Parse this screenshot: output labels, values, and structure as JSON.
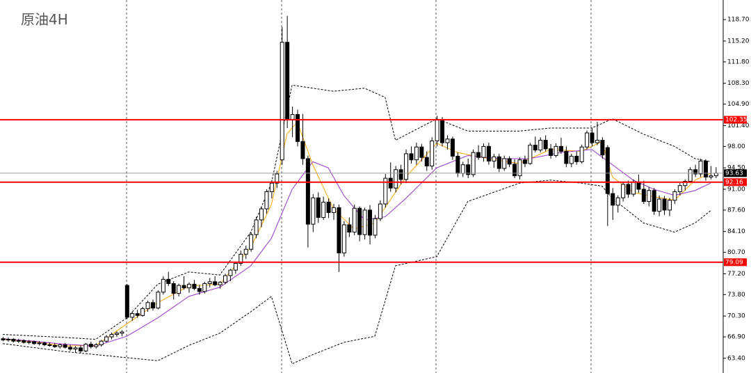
{
  "chart_data": {
    "type": "candlestick",
    "title": "原油4H",
    "ylim": [
      61.0,
      121.9
    ],
    "yticks": [
      {
        "value": 118.7,
        "label": "118.70"
      },
      {
        "value": 115.2,
        "label": "115.20"
      },
      {
        "value": 111.8,
        "label": "111.80"
      },
      {
        "value": 108.3,
        "label": "108.30"
      },
      {
        "value": 104.9,
        "label": "104.90"
      },
      {
        "value": 101.4,
        "label": "101.40"
      },
      {
        "value": 98.0,
        "label": "98.00"
      },
      {
        "value": 94.5,
        "label": "94.50"
      },
      {
        "value": 91.0,
        "label": "91.00"
      },
      {
        "value": 87.6,
        "label": "87.60"
      },
      {
        "value": 84.1,
        "label": "84.10"
      },
      {
        "value": 80.7,
        "label": "80.70"
      },
      {
        "value": 77.2,
        "label": "77.20"
      },
      {
        "value": 73.8,
        "label": "73.80"
      },
      {
        "value": 70.3,
        "label": "70.30"
      },
      {
        "value": 66.9,
        "label": "66.90"
      },
      {
        "value": 63.4,
        "label": "63.40"
      }
    ],
    "up_color": "#ffffff",
    "down_color": "#000000",
    "candles": [
      [
        66.6,
        66.9,
        66.2,
        66.4
      ],
      [
        66.4,
        66.8,
        66.1,
        66.5
      ],
      [
        66.5,
        66.7,
        66.0,
        66.2
      ],
      [
        66.2,
        66.6,
        65.9,
        66.3
      ],
      [
        66.3,
        66.5,
        65.8,
        66.0
      ],
      [
        66.0,
        66.4,
        65.7,
        66.1
      ],
      [
        66.1,
        66.3,
        65.6,
        65.8
      ],
      [
        65.8,
        66.2,
        65.5,
        65.9
      ],
      [
        65.9,
        66.1,
        65.4,
        65.6
      ],
      [
        65.6,
        66.0,
        65.3,
        65.5
      ],
      [
        65.5,
        65.9,
        65.1,
        65.3
      ],
      [
        65.3,
        65.8,
        65.0,
        65.6
      ],
      [
        65.6,
        65.9,
        65.0,
        65.2
      ],
      [
        65.2,
        65.6,
        64.6,
        64.9
      ],
      [
        64.9,
        65.4,
        64.3,
        65.1
      ],
      [
        65.1,
        65.5,
        64.2,
        64.6
      ],
      [
        64.6,
        65.9,
        64.4,
        65.7
      ],
      [
        65.7,
        66.1,
        65.0,
        65.3
      ],
      [
        65.3,
        65.9,
        65.0,
        65.6
      ],
      [
        65.6,
        66.4,
        65.3,
        66.2
      ],
      [
        66.2,
        67.2,
        66.0,
        66.9
      ],
      [
        66.9,
        67.6,
        66.5,
        67.3
      ],
      [
        67.3,
        67.8,
        66.9,
        67.5
      ],
      [
        67.5,
        68.0,
        67.0,
        67.7
      ],
      [
        75.3,
        75.5,
        69.8,
        70.1
      ],
      [
        70.1,
        71.0,
        69.5,
        70.7
      ],
      [
        70.7,
        71.3,
        70.0,
        70.4
      ],
      [
        70.4,
        71.8,
        70.2,
        71.5
      ],
      [
        71.5,
        72.8,
        71.0,
        72.5
      ],
      [
        72.5,
        73.0,
        71.2,
        71.6
      ],
      [
        71.6,
        74.5,
        71.4,
        74.2
      ],
      [
        74.2,
        76.8,
        73.8,
        76.3
      ],
      [
        76.3,
        77.5,
        75.2,
        75.6
      ],
      [
        75.6,
        76.0,
        73.0,
        74.0
      ],
      [
        74.0,
        75.6,
        73.5,
        75.3
      ],
      [
        75.3,
        76.8,
        74.6,
        74.9
      ],
      [
        74.9,
        75.8,
        74.1,
        75.5
      ],
      [
        75.5,
        76.2,
        74.5,
        74.8
      ],
      [
        74.8,
        75.4,
        73.8,
        74.3
      ],
      [
        74.3,
        75.9,
        74.0,
        75.6
      ],
      [
        75.6,
        76.5,
        75.0,
        75.9
      ],
      [
        75.9,
        76.8,
        75.2,
        75.4
      ],
      [
        75.4,
        76.0,
        74.8,
        75.8
      ],
      [
        75.8,
        77.2,
        75.5,
        76.9
      ],
      [
        76.9,
        78.0,
        76.0,
        77.8
      ],
      [
        77.8,
        79.2,
        77.2,
        78.9
      ],
      [
        78.9,
        81.0,
        78.5,
        80.4
      ],
      [
        80.4,
        81.8,
        79.6,
        81.2
      ],
      [
        81.2,
        84.0,
        80.8,
        83.6
      ],
      [
        83.6,
        86.5,
        83.0,
        86.0
      ],
      [
        86.0,
        88.2,
        84.8,
        87.8
      ],
      [
        87.8,
        91.0,
        87.0,
        90.6
      ],
      [
        90.6,
        92.5,
        89.5,
        92.0
      ],
      [
        92.0,
        94.0,
        91.2,
        93.5
      ],
      [
        95.8,
        117.5,
        95.0,
        115.0
      ],
      [
        115.0,
        119.3,
        101.0,
        102.3
      ],
      [
        102.3,
        104.5,
        99.5,
        103.2
      ],
      [
        103.2,
        104.0,
        98.0,
        98.8
      ],
      [
        98.8,
        103.3,
        95.0,
        96.0
      ],
      [
        96.0,
        96.5,
        81.5,
        85.3
      ],
      [
        85.3,
        90.2,
        84.0,
        89.6
      ],
      [
        89.6,
        90.5,
        85.5,
        86.4
      ],
      [
        86.4,
        89.8,
        86.0,
        88.9
      ],
      [
        88.9,
        89.5,
        86.3,
        87.2
      ],
      [
        87.2,
        88.6,
        86.0,
        88.0
      ],
      [
        88.0,
        88.5,
        77.5,
        80.6
      ],
      [
        80.6,
        85.8,
        80.0,
        85.2
      ],
      [
        85.2,
        86.4,
        83.2,
        84.0
      ],
      [
        84.0,
        88.5,
        83.5,
        87.9
      ],
      [
        87.9,
        88.2,
        82.5,
        83.6
      ],
      [
        83.6,
        88.0,
        82.8,
        87.6
      ],
      [
        87.6,
        88.4,
        82.0,
        83.5
      ],
      [
        83.5,
        86.8,
        83.0,
        86.2
      ],
      [
        86.2,
        89.2,
        85.8,
        88.6
      ],
      [
        88.6,
        93.5,
        88.0,
        92.8
      ],
      [
        92.8,
        95.4,
        90.6,
        91.2
      ],
      [
        91.2,
        94.8,
        90.5,
        94.2
      ],
      [
        94.2,
        95.0,
        91.8,
        92.6
      ],
      [
        92.6,
        97.5,
        92.0,
        96.8
      ],
      [
        96.8,
        98.0,
        95.2,
        95.8
      ],
      [
        95.8,
        98.6,
        95.0,
        97.9
      ],
      [
        97.9,
        98.4,
        95.5,
        96.2
      ],
      [
        96.2,
        97.2,
        94.0,
        94.8
      ],
      [
        94.8,
        99.5,
        94.2,
        98.9
      ],
      [
        98.9,
        103.0,
        98.0,
        102.4
      ],
      [
        102.4,
        102.8,
        98.0,
        98.6
      ],
      [
        98.6,
        99.8,
        97.5,
        99.2
      ],
      [
        99.2,
        99.6,
        95.8,
        96.4
      ],
      [
        96.4,
        97.0,
        93.0,
        93.6
      ],
      [
        93.6,
        95.5,
        93.0,
        95.0
      ],
      [
        95.0,
        96.0,
        92.8,
        93.4
      ],
      [
        93.4,
        97.5,
        93.0,
        97.0
      ],
      [
        97.0,
        98.2,
        95.8,
        96.2
      ],
      [
        96.2,
        98.5,
        95.5,
        98.0
      ],
      [
        98.0,
        98.6,
        95.0,
        95.6
      ],
      [
        95.6,
        96.8,
        94.5,
        96.3
      ],
      [
        96.3,
        96.8,
        93.8,
        94.4
      ],
      [
        94.4,
        96.5,
        94.0,
        96.0
      ],
      [
        96.0,
        96.4,
        94.6,
        95.1
      ],
      [
        95.1,
        95.9,
        92.8,
        93.2
      ],
      [
        93.2,
        96.2,
        92.6,
        95.8
      ],
      [
        95.8,
        96.5,
        94.6,
        95.2
      ],
      [
        95.2,
        98.6,
        95.0,
        98.2
      ],
      [
        98.2,
        99.6,
        97.0,
        97.4
      ],
      [
        97.4,
        99.5,
        97.0,
        99.0
      ],
      [
        99.0,
        99.8,
        97.2,
        97.6
      ],
      [
        97.6,
        98.4,
        96.0,
        96.5
      ],
      [
        96.5,
        98.5,
        96.2,
        98.0
      ],
      [
        98.0,
        99.4,
        96.8,
        97.2
      ],
      [
        97.2,
        98.0,
        94.6,
        95.2
      ],
      [
        95.2,
        96.8,
        94.6,
        96.4
      ],
      [
        96.4,
        97.2,
        95.0,
        95.5
      ],
      [
        95.5,
        98.3,
        95.2,
        97.9
      ],
      [
        97.9,
        100.6,
        97.5,
        100.2
      ],
      [
        100.2,
        101.0,
        98.0,
        98.6
      ],
      [
        98.6,
        102.0,
        98.2,
        99.0
      ],
      [
        99.0,
        99.5,
        96.0,
        96.6
      ],
      [
        97.8,
        98.2,
        85.0,
        90.3
      ],
      [
        90.3,
        91.2,
        86.0,
        88.4
      ],
      [
        88.4,
        90.0,
        87.2,
        89.6
      ],
      [
        89.6,
        92.2,
        89.0,
        91.8
      ],
      [
        91.8,
        92.4,
        89.6,
        90.2
      ],
      [
        90.2,
        92.6,
        89.8,
        92.2
      ],
      [
        92.2,
        93.4,
        90.4,
        91.0
      ],
      [
        91.0,
        92.4,
        88.6,
        89.0
      ],
      [
        89.0,
        91.4,
        88.2,
        90.8
      ],
      [
        90.8,
        91.2,
        86.8,
        87.4
      ],
      [
        87.4,
        90.0,
        86.6,
        89.4
      ],
      [
        89.4,
        89.9,
        86.8,
        87.6
      ],
      [
        87.6,
        89.6,
        86.6,
        89.2
      ],
      [
        89.2,
        91.0,
        88.6,
        90.6
      ],
      [
        90.6,
        92.0,
        90.0,
        91.6
      ],
      [
        91.6,
        92.6,
        90.8,
        92.3
      ],
      [
        92.3,
        94.6,
        92.0,
        94.2
      ],
      [
        94.2,
        95.0,
        93.0,
        93.5
      ],
      [
        93.5,
        96.0,
        93.0,
        95.6
      ],
      [
        95.6,
        95.9,
        92.4,
        93.0
      ],
      [
        93.0,
        94.8,
        92.6,
        93.2
      ],
      [
        93.2,
        94.6,
        92.8,
        93.63
      ]
    ],
    "overlays": [
      {
        "color": "#ffa500",
        "dashed": false,
        "x": [
          0,
          6,
          12,
          18,
          24,
          30,
          36,
          42,
          48,
          52,
          55,
          57,
          60,
          64,
          68,
          72,
          78,
          84,
          88,
          94,
          100,
          106,
          112,
          116,
          118,
          122,
          126,
          130,
          134,
          137
        ],
        "values": [
          66.5,
          66.1,
          65.4,
          65.5,
          69.0,
          72.5,
          75.2,
          75.5,
          81.5,
          88.5,
          100.0,
          102.0,
          95.0,
          87.8,
          84.5,
          85.5,
          93.0,
          98.5,
          97.0,
          96.0,
          95.2,
          97.5,
          97.2,
          98.8,
          93.0,
          90.5,
          89.8,
          89.2,
          92.5,
          93.6
        ]
      },
      {
        "color": "#9932cc",
        "dashed": false,
        "x": [
          0,
          6,
          12,
          18,
          24,
          30,
          36,
          42,
          48,
          52,
          56,
          60,
          63,
          66,
          70,
          74,
          78,
          84,
          90,
          96,
          102,
          108,
          114,
          118,
          122,
          126,
          130,
          134,
          137
        ],
        "values": [
          66.6,
          66.2,
          65.7,
          65.4,
          67.0,
          70.0,
          73.5,
          75.0,
          78.5,
          83.0,
          91.0,
          95.5,
          94.5,
          90.0,
          86.0,
          86.5,
          89.5,
          94.5,
          96.5,
          96.0,
          96.0,
          97.0,
          97.5,
          95.0,
          92.5,
          91.0,
          90.0,
          90.8,
          92.0
        ]
      },
      {
        "color": "#000000",
        "dashed": true,
        "x": [
          0,
          12,
          18,
          24,
          30,
          36,
          42,
          48,
          52,
          56,
          60,
          64,
          70,
          74,
          76,
          84,
          90,
          100,
          106,
          114,
          118,
          124,
          130,
          134,
          137
        ],
        "values": [
          67.3,
          66.8,
          66.5,
          70.0,
          75.5,
          77.5,
          77.0,
          84.0,
          92.0,
          108.0,
          107.5,
          107.0,
          107.5,
          106.0,
          99.0,
          102.5,
          100.5,
          100.5,
          101.0,
          101.0,
          102.5,
          100.0,
          98.0,
          96.0,
          95.5
        ]
      },
      {
        "color": "#000000",
        "dashed": true,
        "x": [
          0,
          12,
          18,
          24,
          30,
          36,
          42,
          48,
          52,
          56,
          60,
          66,
          72,
          76,
          84,
          90,
          100,
          106,
          112,
          116,
          118,
          124,
          130,
          134,
          137
        ],
        "values": [
          65.8,
          64.5,
          64.0,
          63.5,
          63.0,
          65.5,
          67.5,
          71.0,
          73.5,
          62.5,
          64.0,
          66.0,
          67.0,
          78.5,
          80.0,
          89.0,
          92.0,
          92.5,
          92.0,
          91.5,
          89.5,
          85.5,
          84.0,
          85.5,
          87.5
        ]
      }
    ],
    "levels": [
      {
        "value": 102.35,
        "color": "#ff0000"
      },
      {
        "value": 92.16,
        "color": "#ff0000"
      },
      {
        "value": 79.09,
        "color": "#ff0000"
      }
    ],
    "current": {
      "value": 93.63,
      "color": "#000000"
    }
  }
}
